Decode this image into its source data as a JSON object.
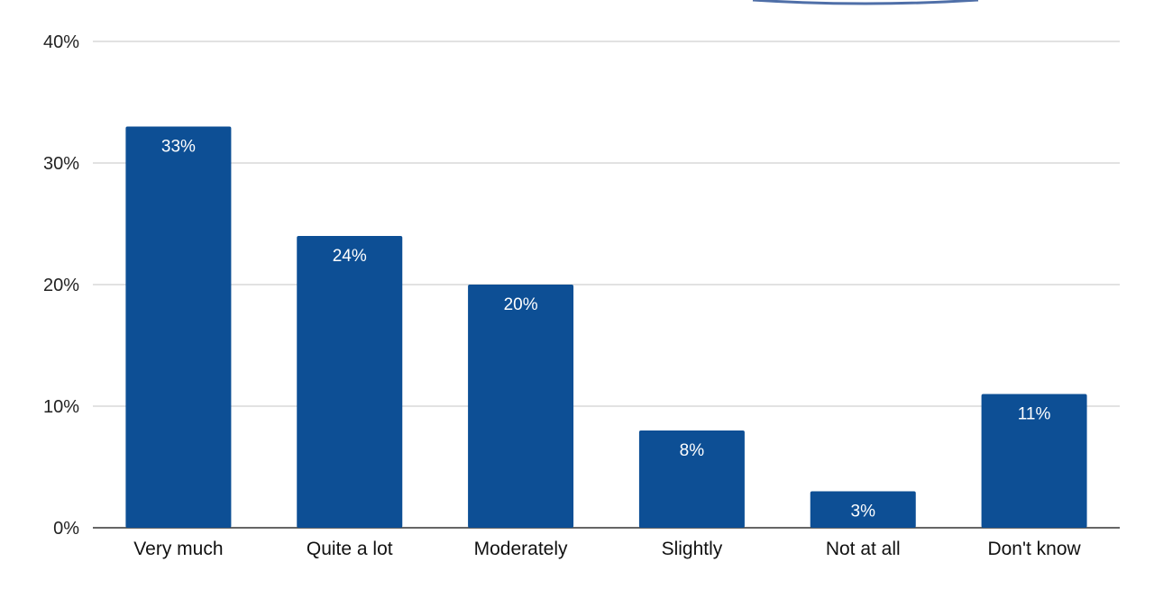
{
  "chart_data": {
    "type": "bar",
    "categories": [
      "Very much",
      "Quite a lot",
      "Moderately",
      "Slightly",
      "Not at all",
      "Don't know"
    ],
    "values": [
      33,
      24,
      20,
      8,
      3,
      11
    ],
    "data_labels": [
      "33%",
      "24%",
      "20%",
      "8%",
      "3%",
      "11%"
    ],
    "y_ticks": [
      {
        "value": 0,
        "label": "0%"
      },
      {
        "value": 10,
        "label": "10%"
      },
      {
        "value": 20,
        "label": "20%"
      },
      {
        "value": 30,
        "label": "30%"
      },
      {
        "value": 40,
        "label": "40%"
      }
    ],
    "ylim": [
      0,
      40
    ],
    "grid": true,
    "legend": "none",
    "bar_color": "#0d4f95"
  }
}
